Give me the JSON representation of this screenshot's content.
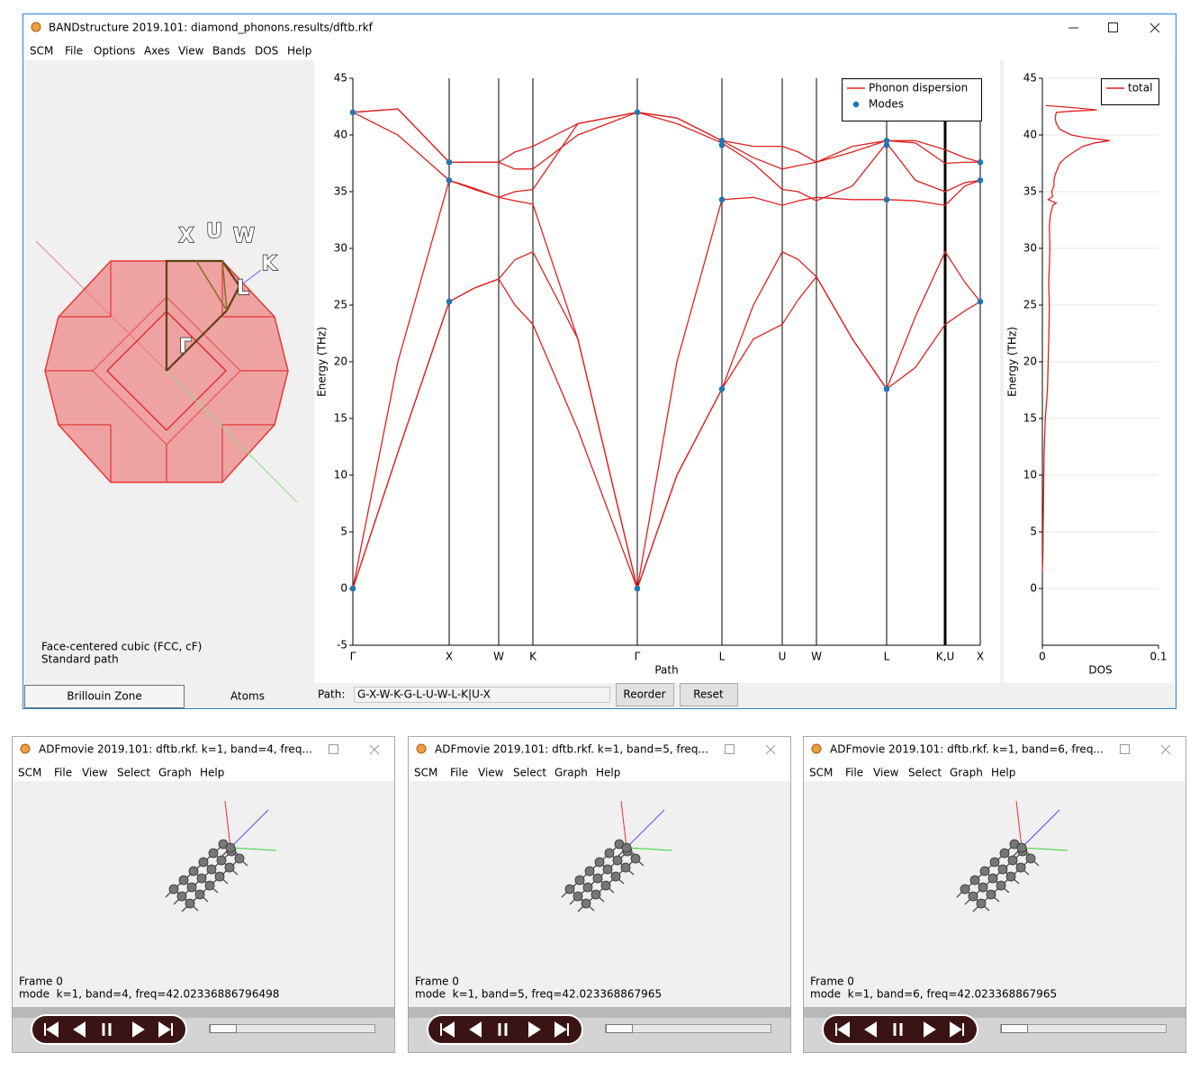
{
  "main_window": {
    "title": "BANDstructure 2019.101: diamond_phonons.results/dftb.rkf",
    "menu": [
      "SCM",
      "File",
      "Options",
      "Axes",
      "View",
      "Bands",
      "DOS",
      "Help"
    ],
    "brillouin_labels": [
      "X",
      "U",
      "W",
      "K",
      "L",
      "Γ"
    ],
    "lattice": "Face-centered cubic (FCC, cF)",
    "path_type": "Standard path",
    "tabs": [
      "Brillouin Zone",
      "Atoms"
    ],
    "path_label": "Path:",
    "path_value": "G-X-W-K-G-L-U-W-L-K|U-X",
    "buttons": [
      "Reorder",
      "Reset"
    ]
  },
  "chart_data": [
    {
      "type": "line",
      "x_label": "Path",
      "y_label": "Energy (THz)",
      "xlim": [
        0,
        6.97
      ],
      "ylim": [
        -5,
        45
      ],
      "yticks": [
        -5,
        0,
        5,
        10,
        15,
        20,
        25,
        30,
        35,
        40,
        45
      ],
      "xticks": [
        {
          "value": 0,
          "label": "Γ"
        },
        {
          "value": 1.07,
          "label": "X"
        },
        {
          "value": 1.62,
          "label": "W"
        },
        {
          "value": 2.0,
          "label": "K"
        },
        {
          "value": 3.16,
          "label": "Γ"
        },
        {
          "value": 4.1,
          "label": "L"
        },
        {
          "value": 4.77,
          "label": "U"
        },
        {
          "value": 5.15,
          "label": "W"
        },
        {
          "value": 5.93,
          "label": "L"
        },
        {
          "value": 6.58,
          "label": "K,U"
        },
        {
          "value": 6.97,
          "label": "X"
        }
      ],
      "cursor_x": 6.58,
      "grid": false,
      "legend": "upper right",
      "x": [
        0,
        0.5,
        1.07,
        1.35,
        1.62,
        1.8,
        2.0,
        2.5,
        3.16,
        3.6,
        4.1,
        4.45,
        4.77,
        4.95,
        5.15,
        5.55,
        5.93,
        6.25,
        6.58,
        6.8,
        6.97
      ],
      "series": [
        {
          "name": "Phonon dispersion",
          "color": "#de2121",
          "values": [
            [
              0,
              12,
              25.3,
              26.5,
              27.3,
              25,
              23.3,
              14,
              0,
              10,
              17.6,
              22,
              23.3,
              25.5,
              27.5,
              22,
              17.6,
              19.5,
              23.3,
              24.5,
              25.3
            ],
            [
              0,
              12,
              25.3,
              26.5,
              27.3,
              29,
              29.7,
              22,
              0,
              10,
              17.6,
              25,
              29.7,
              29,
              27.5,
              22,
              17.6,
              24,
              29.7,
              27,
              25.3
            ],
            [
              0,
              20,
              36,
              35.2,
              34.5,
              34.2,
              33.9,
              22,
              0,
              20,
              34.3,
              34.5,
              33.8,
              34.2,
              34.5,
              34.3,
              34.3,
              34.2,
              33.8,
              35.5,
              36
            ],
            [
              42,
              40,
              36,
              35.3,
              34.5,
              35,
              35.2,
              41,
              42,
              41,
              39.3,
              37.5,
              35.2,
              35,
              34.2,
              35.5,
              39.3,
              36,
              35,
              35.8,
              36
            ],
            [
              42,
              42.3,
              37.6,
              37.6,
              37.6,
              37,
              37,
              40,
              42,
              41.5,
              39.5,
              38,
              37,
              37.3,
              37.6,
              39,
              39.5,
              39.3,
              37.5,
              37.6,
              37.6
            ],
            [
              42,
              42.3,
              37.6,
              37.6,
              37.6,
              38.5,
              39,
              41,
              42,
              41.5,
              39.5,
              39,
              39,
              38.5,
              37.6,
              38.5,
              39.5,
              39.5,
              38.7,
              38,
              37.6
            ]
          ]
        },
        {
          "name": "Modes",
          "color": "#1f77b4",
          "x": [
            0,
            0,
            1.07,
            1.07,
            1.07,
            3.16,
            3.16,
            4.1,
            4.1,
            4.1,
            4.1,
            5.93,
            5.93,
            5.93,
            5.93,
            6.97,
            6.97,
            6.97
          ],
          "values": [
            42,
            0,
            37.6,
            36,
            25.3,
            42,
            0,
            39.5,
            39.1,
            34.3,
            17.6,
            39.5,
            39.1,
            34.3,
            17.6,
            37.6,
            36,
            25.3
          ]
        }
      ]
    },
    {
      "type": "line",
      "x_label": "DOS",
      "y_label": "Energy (THz)",
      "xlim": [
        0,
        0.1
      ],
      "xticks": [
        0,
        0.1
      ],
      "ylim": [
        -5,
        45
      ],
      "yticks": [
        0,
        5,
        10,
        15,
        20,
        25,
        30,
        35,
        40,
        45
      ],
      "grid": true,
      "legend": "upper right",
      "y": [
        1.5,
        3,
        5,
        8,
        10,
        12,
        15,
        17,
        18,
        20,
        22,
        25,
        27,
        30,
        32,
        33,
        33.8,
        34.0,
        34.3,
        34.6,
        35,
        35.5,
        36,
        36.5,
        37,
        37.5,
        38,
        38.5,
        39,
        39.3,
        39.5,
        39.8,
        40,
        40.5,
        41,
        41.5,
        42,
        42.1,
        42.2,
        42.4,
        42.6
      ],
      "series": [
        {
          "name": "total",
          "color": "#de2121",
          "values": [
            0,
            0.0005,
            0.0006,
            0.001,
            0.0012,
            0.0015,
            0.0025,
            0.004,
            0.0045,
            0.005,
            0.0055,
            0.006,
            0.0055,
            0.0065,
            0.006,
            0.007,
            0.009,
            0.012,
            0.005,
            0.009,
            0.008,
            0.01,
            0.01,
            0.011,
            0.013,
            0.015,
            0.02,
            0.027,
            0.035,
            0.045,
            0.058,
            0.035,
            0.025,
            0.015,
            0.012,
            0.011,
            0.012,
            0.025,
            0.047,
            0.028,
            0.003
          ]
        }
      ]
    }
  ],
  "movie_windows": [
    {
      "title": "ADFmovie 2019.101: dftb.rkf. k=1, band=4, freq...",
      "menu": [
        "SCM",
        "File",
        "View",
        "Select",
        "Graph",
        "Help"
      ],
      "frame": "Frame 0",
      "mode": "mode  k=1, band=4, freq=42.02336886796498"
    },
    {
      "title": "ADFmovie 2019.101: dftb.rkf. k=1, band=5, freq...",
      "menu": [
        "SCM",
        "File",
        "View",
        "Select",
        "Graph",
        "Help"
      ],
      "frame": "Frame 0",
      "mode": "mode  k=1, band=5, freq=42.023368867965"
    },
    {
      "title": "ADFmovie 2019.101: dftb.rkf. k=1, band=6, freq...",
      "menu": [
        "SCM",
        "File",
        "View",
        "Select",
        "Graph",
        "Help"
      ],
      "frame": "Frame 0",
      "mode": "mode  k=1, band=6, freq=42.023368867965"
    }
  ]
}
